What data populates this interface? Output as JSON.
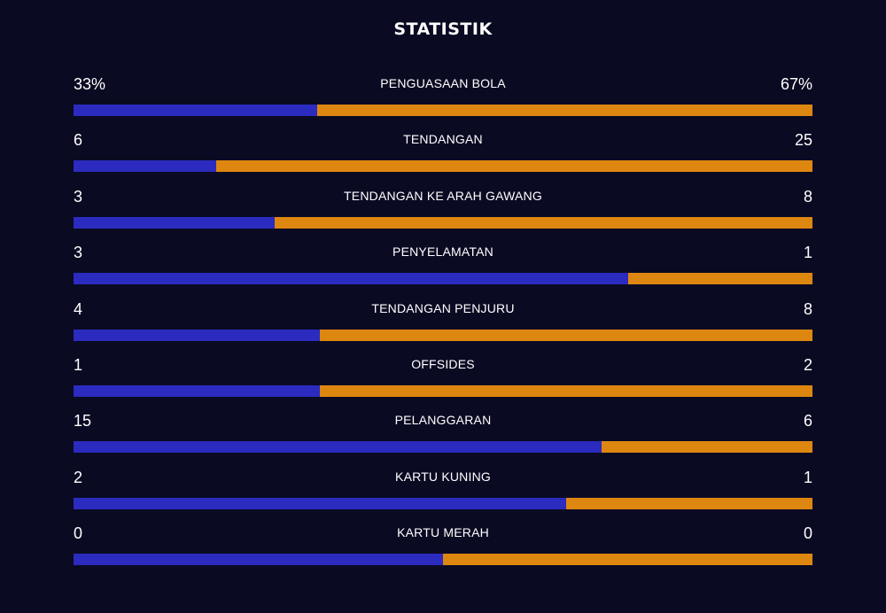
{
  "title": "STATISTIK",
  "colors": {
    "background": "#0a0a23",
    "home": "#2b2bbf",
    "away": "#de8710",
    "text": "#ffffff"
  },
  "chart_data": {
    "type": "bar",
    "orientation": "horizontal",
    "stacked": true,
    "title": "STATISTIK",
    "categories": [
      "PENGUASAAN BOLA",
      "TENDANGAN",
      "TENDANGAN KE ARAH GAWANG",
      "PENYELAMATAN",
      "TENDANGAN PENJURU",
      "OFFSIDES",
      "PELANGGARAN",
      "KARTU KUNING",
      "KARTU MERAH"
    ],
    "series": [
      {
        "values": [
          33,
          6,
          3,
          3,
          4,
          1,
          15,
          2,
          0
        ]
      },
      {
        "values": [
          67,
          25,
          8,
          1,
          8,
          2,
          6,
          1,
          0
        ]
      }
    ],
    "value_labels": {
      "left": [
        "33%",
        "6",
        "3",
        "3",
        "4",
        "1",
        "15",
        "2",
        "0"
      ],
      "right": [
        "67%",
        "25",
        "8",
        "1",
        "8",
        "2",
        "6",
        "1",
        "0"
      ]
    }
  }
}
